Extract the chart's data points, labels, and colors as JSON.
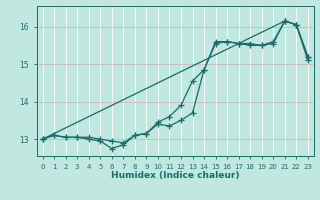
{
  "xlabel": "Humidex (Indice chaleur)",
  "bg_color": "#c0e8e0",
  "line_color": "#1a6b6b",
  "grid_color": "#b0d8d0",
  "xmin": -0.5,
  "xmax": 23.5,
  "ymin": 12.55,
  "ymax": 16.55,
  "yticks": [
    13,
    14,
    15,
    16
  ],
  "xticks": [
    0,
    1,
    2,
    3,
    4,
    5,
    6,
    7,
    8,
    9,
    10,
    11,
    12,
    13,
    14,
    15,
    16,
    17,
    18,
    19,
    20,
    21,
    22,
    23
  ],
  "line1_x": [
    0,
    1,
    2,
    3,
    4,
    5,
    6,
    7,
    8,
    9,
    10,
    11,
    12,
    13,
    14,
    15,
    16,
    17,
    18,
    19,
    20,
    21,
    22,
    23
  ],
  "line1_y": [
    13.0,
    13.1,
    13.05,
    13.05,
    13.05,
    13.0,
    12.95,
    12.9,
    13.1,
    13.15,
    13.45,
    13.6,
    13.9,
    14.55,
    14.85,
    15.6,
    15.6,
    15.55,
    15.55,
    15.5,
    15.6,
    16.15,
    16.05,
    15.2
  ],
  "line2_x": [
    0,
    1,
    2,
    3,
    4,
    5,
    6,
    7,
    8,
    9,
    10,
    11,
    12,
    13,
    14,
    15,
    16,
    17,
    18,
    19,
    20,
    21,
    22,
    23
  ],
  "line2_y": [
    13.0,
    13.1,
    13.05,
    13.05,
    13.0,
    12.95,
    12.75,
    12.85,
    13.1,
    13.15,
    13.4,
    13.35,
    13.5,
    13.7,
    14.85,
    15.55,
    15.6,
    15.55,
    15.5,
    15.5,
    15.55,
    16.15,
    16.05,
    15.2
  ],
  "line3_x": [
    0,
    21,
    22,
    23
  ],
  "line3_y": [
    13.0,
    16.15,
    16.05,
    15.1
  ]
}
